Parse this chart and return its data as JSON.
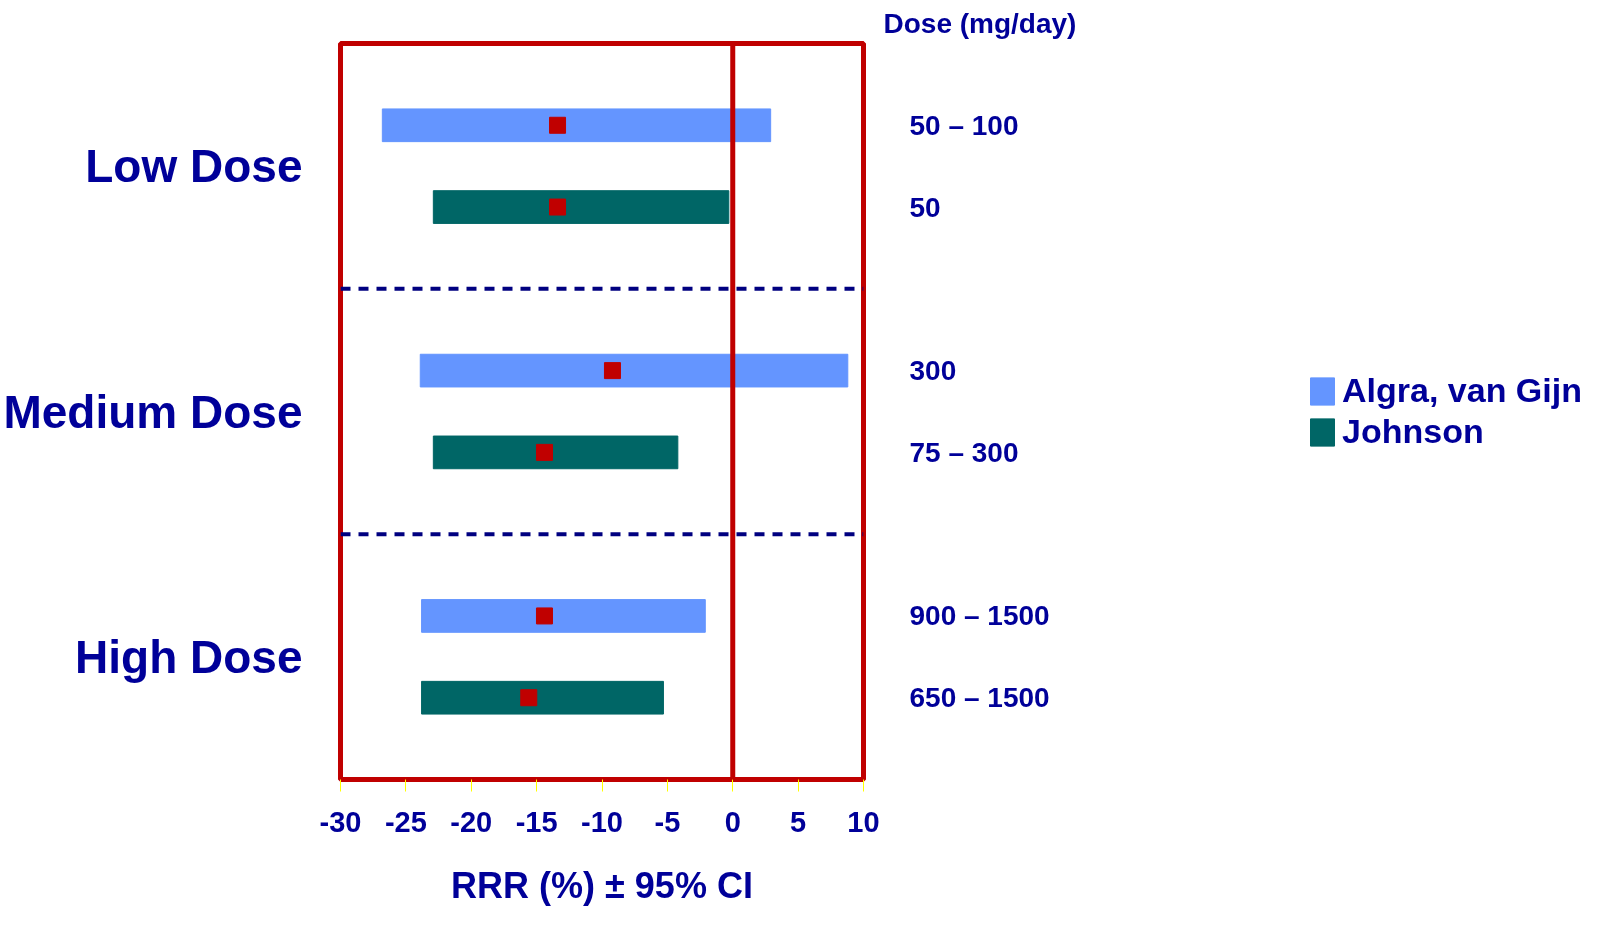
{
  "chart_data": {
    "type": "bar",
    "orientation": "horizontal",
    "xlabel": "RRR (%) ± 95% CI",
    "categories": [
      "50 – 100",
      "50",
      "300",
      "75 – 300",
      "900 – 1500",
      "650 – 1500"
    ],
    "series": [
      {
        "name": "Algra, van Gijn",
        "color": "#6495ff",
        "base": [
          -26.8,
          null,
          -23.9,
          null,
          -23.8,
          null
        ],
        "values": [
          29.7,
          null,
          32.7,
          null,
          21.7,
          null
        ]
      },
      {
        "name": "Johnson",
        "color": "#006666",
        "base": [
          null,
          -22.9,
          null,
          -22.9,
          null,
          -23.8
        ],
        "values": [
          null,
          22.6,
          null,
          18.7,
          null,
          18.5
        ]
      },
      {
        "type": "scatter",
        "color": "#c00000",
        "marker": "square",
        "values": [
          -13.4,
          -13.4,
          -9.2,
          -14.4,
          -14.4,
          -15.6
        ]
      }
    ],
    "xlim": [
      -30,
      10
    ],
    "xticks": [
      -30,
      -25,
      -20,
      -15,
      -10,
      -5,
      0,
      5,
      10
    ],
    "ref_lines": [
      {
        "axis": "x",
        "value": 0,
        "color": "#c00000",
        "line_style": "solid"
      }
    ],
    "annotations": [
      "Dose (mg/day)",
      "Low Dose",
      "Medium Dose",
      "High Dose"
    ],
    "legend": "right",
    "grid": false
  }
}
